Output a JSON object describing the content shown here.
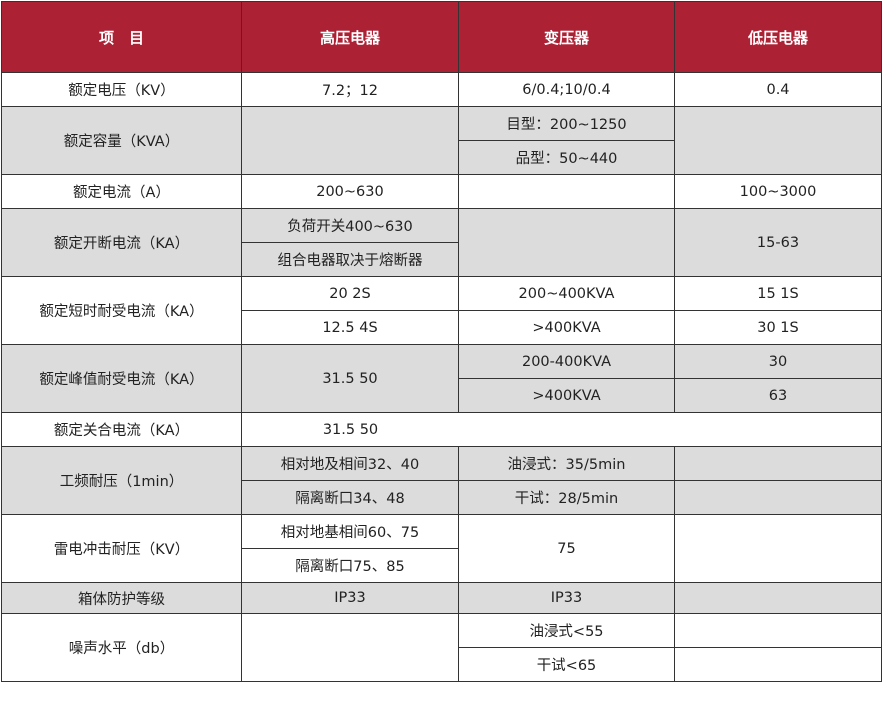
{
  "header": {
    "item": "项　目",
    "high_voltage": "高压电器",
    "transformer": "变压器",
    "low_voltage": "低压电器"
  },
  "colors": {
    "header_bg": "#ad2135",
    "shaded_row": "#dcdcdc"
  },
  "rows": {
    "rated_voltage": {
      "label": "额定电压（KV）",
      "hv": "7.2；12",
      "tr": "6/0.4;10/0.4",
      "lv": "0.4"
    },
    "rated_capacity": {
      "label": "额定容量（KVA）",
      "tr_1": "目型：200~1250",
      "tr_2": "品型：50~440"
    },
    "rated_current": {
      "label": "额定电流（A）",
      "hv": "200~630",
      "lv": "100~3000"
    },
    "breaking_current": {
      "label": "额定开断电流（KA）",
      "hv_1": "负荷开关400~630",
      "hv_2": "组合电器取决于熔断器",
      "lv": "15-63"
    },
    "short_time_current": {
      "label": "额定短时耐受电流（KA）",
      "hv_1": "20  2S",
      "hv_2": "12.5  4S",
      "tr_1": "200~400KVA",
      "tr_2": ">400KVA",
      "lv_1": "15  1S",
      "lv_2": "30  1S"
    },
    "peak_current": {
      "label": "额定峰值耐受电流（KA）",
      "hv": "31.5  50",
      "tr_1": "200-400KVA",
      "tr_2": ">400KVA",
      "lv_1": "30",
      "lv_2": "63"
    },
    "closing_current": {
      "label": "额定关合电流（KA）",
      "hv": "31.5  50"
    },
    "power_freq_withstand": {
      "label": "工频耐压（1min）",
      "hv_1": "相对地及相间32、40",
      "hv_2": "隔离断口34、48",
      "tr_1": "油浸式：35/5min",
      "tr_2": "干试：28/5min"
    },
    "lightning_impulse": {
      "label": "雷电冲击耐压（KV）",
      "hv_1": "相对地基相间60、75",
      "hv_2": "隔离断口75、85",
      "tr": "75"
    },
    "enclosure_protection": {
      "label": "箱体防护等级",
      "hv": "IP33",
      "tr": "IP33"
    },
    "noise_level": {
      "label": "噪声水平（db）",
      "tr_1": "油浸式<55",
      "tr_2": "干试<65"
    }
  }
}
